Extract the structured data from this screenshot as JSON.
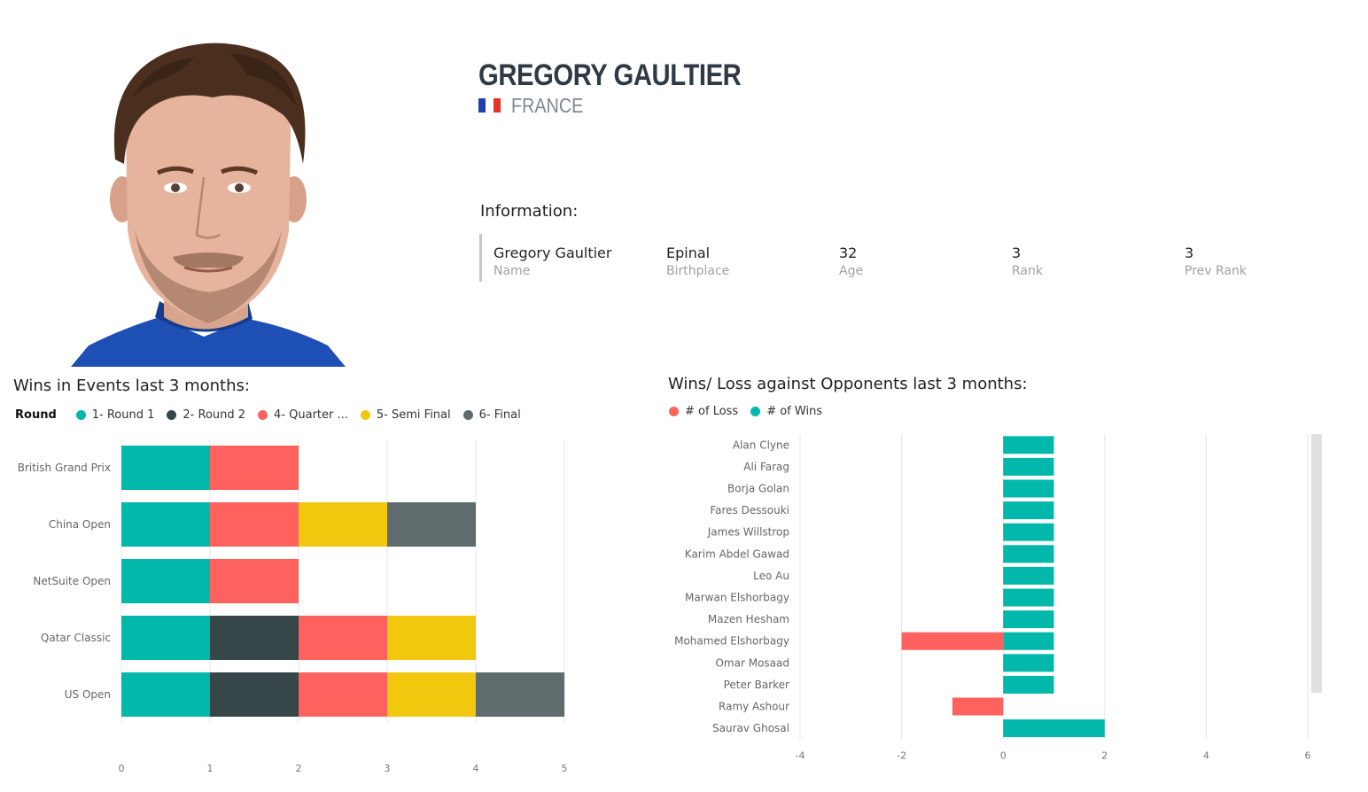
{
  "player": {
    "name": "GREGORY GAULTIER",
    "country": "FRANCE",
    "flag_colors": [
      "#1f3fae",
      "#ffffff",
      "#e5332a"
    ]
  },
  "information": {
    "heading": "Information:",
    "fields": [
      {
        "value": "Gregory Gaultier",
        "label": "Name"
      },
      {
        "value": "Epinal",
        "label": "Birthplace"
      },
      {
        "value": "32",
        "label": "Age"
      },
      {
        "value": "3",
        "label": "Rank"
      },
      {
        "value": "3",
        "label": "Prev Rank"
      }
    ]
  },
  "events_chart": {
    "title": "Wins in Events last 3 months:",
    "legend_title": "Round",
    "legend": [
      {
        "label": "1- Round 1",
        "color": "#01b8aa"
      },
      {
        "label": "2- Round 2",
        "color": "#374649"
      },
      {
        "label": "4- Quarter ...",
        "color": "#fd625e"
      },
      {
        "label": "5- Semi Final",
        "color": "#f2c80f"
      },
      {
        "label": "6- Final",
        "color": "#5f6b6d"
      }
    ]
  },
  "opponents_chart": {
    "title": "Wins/ Loss against Opponents last 3 months:",
    "legend": [
      {
        "label": "# of Loss",
        "color": "#fd625e"
      },
      {
        "label": "# of Wins",
        "color": "#01b8aa"
      }
    ]
  },
  "chart_data": [
    {
      "type": "bar",
      "orientation": "horizontal",
      "stacked": true,
      "title": "Wins in Events last 3 months:",
      "categories": [
        "British Grand Prix",
        "China Open",
        "NetSuite Open",
        "Qatar Classic",
        "US Open"
      ],
      "series": [
        {
          "name": "1- Round 1",
          "color": "#01b8aa",
          "values": [
            1,
            1,
            1,
            1,
            1
          ]
        },
        {
          "name": "2- Round 2",
          "color": "#374649",
          "values": [
            0,
            0,
            0,
            1,
            1
          ]
        },
        {
          "name": "4- Quarter ...",
          "color": "#fd625e",
          "values": [
            1,
            1,
            1,
            1,
            1
          ]
        },
        {
          "name": "5- Semi Final",
          "color": "#f2c80f",
          "values": [
            0,
            1,
            0,
            1,
            1
          ]
        },
        {
          "name": "6- Final",
          "color": "#5f6b6d",
          "values": [
            0,
            1,
            0,
            0,
            1
          ]
        }
      ],
      "xlim": [
        0,
        5
      ],
      "xticks": [
        "0",
        "1",
        "2",
        "3",
        "4",
        "5"
      ],
      "grid": true
    },
    {
      "type": "bar",
      "orientation": "horizontal",
      "title": "Wins/ Loss against Opponents last 3 months:",
      "categories": [
        "Alan Clyne",
        "Ali Farag",
        "Borja Golan",
        "Fares Dessouki",
        "James Willstrop",
        "Karim Abdel Gawad",
        "Leo Au",
        "Marwan Elshorbagy",
        "Mazen Hesham",
        "Mohamed Elshorbagy",
        "Omar Mosaad",
        "Peter Barker",
        "Ramy Ashour",
        "Saurav Ghosal"
      ],
      "series": [
        {
          "name": "# of Loss",
          "color": "#fd625e",
          "values": [
            0,
            0,
            0,
            0,
            0,
            0,
            0,
            0,
            0,
            -2,
            0,
            0,
            -1,
            0
          ]
        },
        {
          "name": "# of Wins",
          "color": "#01b8aa",
          "values": [
            1,
            1,
            1,
            1,
            1,
            1,
            1,
            1,
            1,
            1,
            1,
            1,
            0,
            2
          ]
        }
      ],
      "xlim": [
        -4,
        6
      ],
      "xticks": [
        "-4",
        "-2",
        "0",
        "2",
        "4",
        "6"
      ],
      "grid": true
    }
  ]
}
